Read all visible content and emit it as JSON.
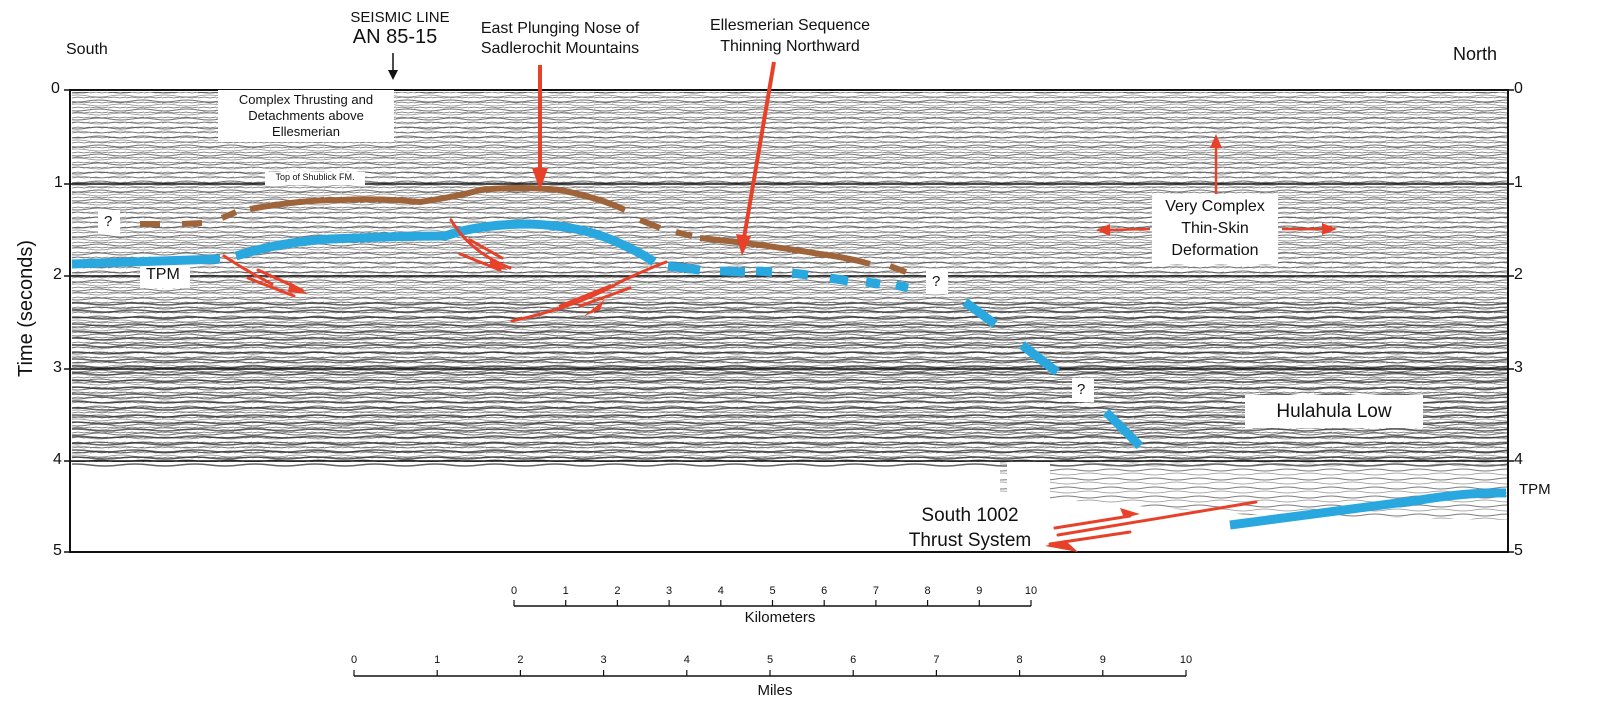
{
  "header": {
    "south": "South",
    "north": "North",
    "seismic_line": "SEISMIC LINE",
    "line_id": "AN 85-15",
    "nose_line1": "East Plunging Nose of",
    "nose_line2": "Sadlerochit Mountains",
    "ellesmerian_line1": "Ellesmerian Sequence",
    "ellesmerian_line2": "Thinning Northward"
  },
  "axis": {
    "ylabel": "Time (seconds)",
    "ticks": [
      "0",
      "1",
      "2",
      "3",
      "4",
      "5"
    ]
  },
  "annotations": {
    "complex_line1": "Complex Thrusting and",
    "complex_line2": "Detachments above",
    "complex_line3": "Ellesmerian",
    "shublick": "Top of Shublick FM.",
    "tpm_left": "TPM",
    "tpm_right": "TPM",
    "question": "?",
    "thin_line1": "Very Complex",
    "thin_line2": "Thin-Skin",
    "thin_line3": "Deformation",
    "hulahula": "Hulahula Low",
    "thrust_line1": "South 1002",
    "thrust_line2": "Thrust System"
  },
  "scales": {
    "km_label": "Kilometers",
    "km_ticks": [
      "0",
      "1",
      "2",
      "3",
      "4",
      "5",
      "6",
      "7",
      "8",
      "9",
      "10"
    ],
    "mi_label": "Miles",
    "mi_ticks": [
      "0",
      "1",
      "2",
      "3",
      "4",
      "5",
      "6",
      "7",
      "8",
      "9",
      "10"
    ]
  },
  "colors": {
    "fault_red": "#e8412a",
    "tpm_blue": "#29a8df",
    "shublick_brown": "#a0643a"
  }
}
